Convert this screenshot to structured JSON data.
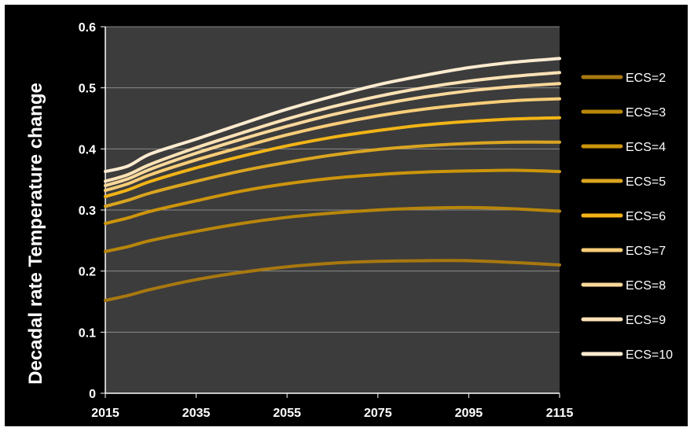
{
  "chart_data": {
    "type": "line",
    "title": "",
    "xlabel": "",
    "ylabel": "Decadal rate Temperature change",
    "xlim": [
      2015,
      2115
    ],
    "ylim": [
      0,
      0.6
    ],
    "x_ticks": [
      "2015",
      "2035",
      "2055",
      "2075",
      "2095",
      "2115"
    ],
    "y_ticks": [
      "0",
      "0.1",
      "0.2",
      "0.3",
      "0.4",
      "0.5",
      "0.6"
    ],
    "grid": true,
    "legend_position": "right",
    "x": [
      2015,
      2020,
      2025,
      2035,
      2045,
      2055,
      2065,
      2075,
      2085,
      2095,
      2105,
      2115
    ],
    "series": [
      {
        "name": "ECS=2",
        "color": "#a8780f",
        "values": [
          0.152,
          0.16,
          0.17,
          0.186,
          0.198,
          0.207,
          0.213,
          0.216,
          0.217,
          0.217,
          0.214,
          0.21
        ]
      },
      {
        "name": "ECS=3",
        "color": "#b8860b",
        "values": [
          0.232,
          0.24,
          0.25,
          0.265,
          0.278,
          0.288,
          0.295,
          0.3,
          0.303,
          0.304,
          0.302,
          0.298
        ]
      },
      {
        "name": "ECS=4",
        "color": "#cd950c",
        "values": [
          0.278,
          0.287,
          0.298,
          0.315,
          0.331,
          0.343,
          0.352,
          0.358,
          0.362,
          0.364,
          0.365,
          0.363
        ]
      },
      {
        "name": "ECS=5",
        "color": "#daa520",
        "values": [
          0.306,
          0.316,
          0.328,
          0.347,
          0.364,
          0.378,
          0.39,
          0.399,
          0.405,
          0.409,
          0.411,
          0.411
        ]
      },
      {
        "name": "ECS=6",
        "color": "#f2b416",
        "values": [
          0.322,
          0.333,
          0.347,
          0.369,
          0.388,
          0.405,
          0.419,
          0.43,
          0.439,
          0.445,
          0.449,
          0.451
        ]
      },
      {
        "name": "ECS=7",
        "color": "#f8cd78",
        "values": [
          0.332,
          0.343,
          0.358,
          0.382,
          0.403,
          0.423,
          0.44,
          0.454,
          0.465,
          0.473,
          0.479,
          0.482
        ]
      },
      {
        "name": "ECS=8",
        "color": "#fad89a",
        "values": [
          0.34,
          0.351,
          0.367,
          0.393,
          0.416,
          0.437,
          0.456,
          0.472,
          0.485,
          0.495,
          0.502,
          0.507
        ]
      },
      {
        "name": "ECS=9",
        "color": "#fce2b6",
        "values": [
          0.347,
          0.358,
          0.375,
          0.402,
          0.426,
          0.449,
          0.469,
          0.486,
          0.5,
          0.511,
          0.519,
          0.525
        ]
      },
      {
        "name": "ECS=10",
        "color": "#fdebd0",
        "values": [
          0.363,
          0.372,
          0.392,
          0.416,
          0.441,
          0.465,
          0.486,
          0.505,
          0.52,
          0.533,
          0.542,
          0.548
        ]
      }
    ]
  }
}
